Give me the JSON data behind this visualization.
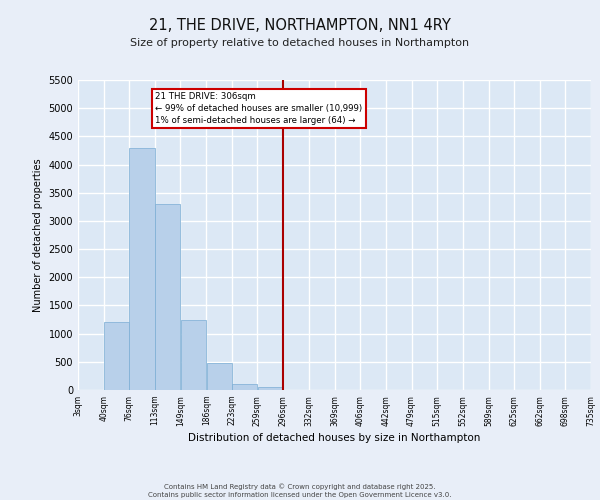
{
  "title": "21, THE DRIVE, NORTHAMPTON, NN1 4RY",
  "subtitle": "Size of property relative to detached houses in Northampton",
  "xlabel": "Distribution of detached houses by size in Northampton",
  "ylabel": "Number of detached properties",
  "bar_color": "#b8d0ea",
  "bar_edge_color": "#7aadd4",
  "background_color": "#dce8f5",
  "fig_background_color": "#e8eef8",
  "grid_color": "#ffffff",
  "vline_color": "#aa0000",
  "annotation_text": "21 THE DRIVE: 306sqm\n← 99% of detached houses are smaller (10,999)\n1% of semi-detached houses are larger (64) →",
  "annotation_box_color": "#cc0000",
  "footer_text": "Contains HM Land Registry data © Crown copyright and database right 2025.\nContains public sector information licensed under the Open Government Licence v3.0.",
  "bin_edges": [
    3,
    40,
    76,
    113,
    149,
    186,
    223,
    259,
    296,
    332,
    369,
    406,
    442,
    479,
    515,
    552,
    589,
    625,
    662,
    698,
    735
  ],
  "bin_labels": [
    "3sqm",
    "40sqm",
    "76sqm",
    "113sqm",
    "149sqm",
    "186sqm",
    "223sqm",
    "259sqm",
    "296sqm",
    "332sqm",
    "369sqm",
    "406sqm",
    "442sqm",
    "479sqm",
    "515sqm",
    "552sqm",
    "589sqm",
    "625sqm",
    "662sqm",
    "698sqm",
    "735sqm"
  ],
  "bar_heights": [
    0,
    1200,
    4300,
    3300,
    1250,
    480,
    100,
    60,
    0,
    0,
    0,
    0,
    0,
    0,
    0,
    0,
    0,
    0,
    0,
    0
  ],
  "vline_x": 296,
  "ylim": [
    0,
    5500
  ],
  "yticks": [
    0,
    500,
    1000,
    1500,
    2000,
    2500,
    3000,
    3500,
    4000,
    4500,
    5000,
    5500
  ]
}
